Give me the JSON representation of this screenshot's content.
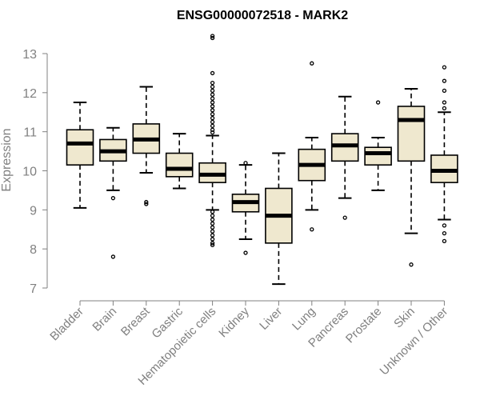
{
  "chart_data": {
    "type": "box",
    "title": "ENSG00000072518 - MARK2",
    "xlabel": "",
    "ylabel": "Expression",
    "ylim": [
      7,
      13
    ],
    "yticks": [
      "7",
      "8",
      "9",
      "10",
      "11",
      "12",
      "13"
    ],
    "box_fill": "#efe8cf",
    "box_stroke": "#000000",
    "axis_color": "#808080",
    "categories": [
      "Bladder",
      "Brain",
      "Breast",
      "Gastric",
      "Hematopoietic cells",
      "Kidney",
      "Liver",
      "Lung",
      "Pancreas",
      "Prostate",
      "Skin",
      "Unknown / Other"
    ],
    "boxes": [
      {
        "whisker_low": 9.05,
        "q1": 10.15,
        "median": 10.7,
        "q3": 11.05,
        "whisker_high": 11.75,
        "outliers": []
      },
      {
        "whisker_low": 9.5,
        "q1": 10.25,
        "median": 10.5,
        "q3": 10.8,
        "whisker_high": 11.1,
        "outliers": [
          9.3,
          7.8
        ]
      },
      {
        "whisker_low": 9.95,
        "q1": 10.45,
        "median": 10.8,
        "q3": 11.2,
        "whisker_high": 12.15,
        "outliers": [
          9.2,
          9.15
        ]
      },
      {
        "whisker_low": 9.55,
        "q1": 9.85,
        "median": 10.05,
        "q3": 10.45,
        "whisker_high": 10.95,
        "outliers": []
      },
      {
        "whisker_low": 9.0,
        "q1": 9.7,
        "median": 9.9,
        "q3": 10.2,
        "whisker_high": 10.9,
        "outliers": [
          13.45,
          13.4,
          12.5,
          12.25,
          12.15,
          12.05,
          11.95,
          11.85,
          11.75,
          11.65,
          11.55,
          11.45,
          11.35,
          11.25,
          11.15,
          11.05,
          10.98,
          8.95,
          8.85,
          8.75,
          8.65,
          8.55,
          8.45,
          8.35,
          8.25,
          8.15,
          8.1
        ]
      },
      {
        "whisker_low": 8.25,
        "q1": 8.95,
        "median": 9.2,
        "q3": 9.4,
        "whisker_high": 10.15,
        "outliers": [
          10.2,
          7.9
        ]
      },
      {
        "whisker_low": 7.1,
        "q1": 8.15,
        "median": 8.85,
        "q3": 9.55,
        "whisker_high": 10.45,
        "outliers": []
      },
      {
        "whisker_low": 9.0,
        "q1": 9.75,
        "median": 10.15,
        "q3": 10.55,
        "whisker_high": 10.85,
        "outliers": [
          12.75,
          8.5
        ]
      },
      {
        "whisker_low": 9.3,
        "q1": 10.25,
        "median": 10.65,
        "q3": 10.95,
        "whisker_high": 11.9,
        "outliers": [
          8.8
        ]
      },
      {
        "whisker_low": 9.5,
        "q1": 10.15,
        "median": 10.45,
        "q3": 10.6,
        "whisker_high": 10.85,
        "outliers": [
          11.75
        ]
      },
      {
        "whisker_low": 8.4,
        "q1": 10.25,
        "median": 11.3,
        "q3": 11.65,
        "whisker_high": 12.1,
        "outliers": [
          7.6
        ]
      },
      {
        "whisker_low": 8.75,
        "q1": 9.7,
        "median": 10.0,
        "q3": 10.4,
        "whisker_high": 11.5,
        "outliers": [
          12.65,
          12.3,
          12.05,
          11.75,
          11.6,
          8.6,
          8.4,
          8.2
        ]
      }
    ]
  }
}
